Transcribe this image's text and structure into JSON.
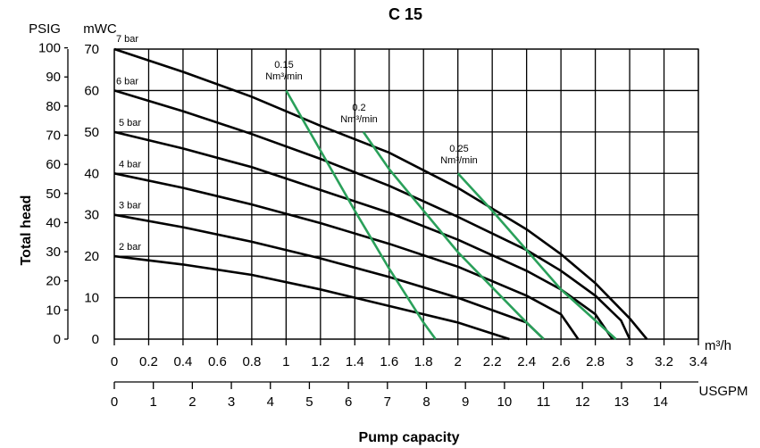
{
  "chart_data": {
    "type": "line",
    "title": "C 15",
    "xlabel": "Pump capacity",
    "ylabel": "Total head",
    "x_unit": "m³/h",
    "x2_unit": "USGPM",
    "y_unit": "mWC",
    "y2_unit": "PSIG",
    "xlim": [
      0,
      3.4
    ],
    "ylim": [
      0,
      70
    ],
    "grid": true,
    "x_ticks": [
      "0",
      "0.2",
      "0.4",
      "0.6",
      "0.8",
      "1",
      "1.2",
      "1.4",
      "1.6",
      "1.8",
      "2",
      "2.2",
      "2.4",
      "2.6",
      "2.8",
      "3",
      "3.2",
      "3.4"
    ],
    "y_ticks": [
      "0",
      "10",
      "20",
      "30",
      "40",
      "50",
      "60",
      "70"
    ],
    "psig_ticks": [
      "0",
      "10",
      "20",
      "30",
      "40",
      "50",
      "60",
      "70",
      "80",
      "90",
      "100"
    ],
    "usgpm_ticks": [
      "0",
      "1",
      "2",
      "3",
      "4",
      "5",
      "6",
      "7",
      "8",
      "9",
      "10",
      "11",
      "12",
      "13",
      "14"
    ],
    "series": [
      {
        "name": "7 bar",
        "kind": "pressure",
        "x": [
          0,
          0.4,
          0.8,
          1.2,
          1.6,
          2.0,
          2.4,
          2.6,
          2.8,
          3.0,
          3.1
        ],
        "y": [
          70,
          64.5,
          58.5,
          51.5,
          45,
          36.5,
          26.5,
          20.5,
          13.5,
          5,
          0
        ]
      },
      {
        "name": "6 bar",
        "kind": "pressure",
        "x": [
          0,
          0.4,
          0.8,
          1.2,
          1.6,
          2.0,
          2.4,
          2.6,
          2.8,
          2.95,
          3.0
        ],
        "y": [
          60,
          55,
          49.5,
          43.5,
          37,
          29.5,
          21.5,
          16.5,
          10.5,
          4.5,
          0
        ]
      },
      {
        "name": "5 bar",
        "kind": "pressure",
        "x": [
          0,
          0.4,
          0.8,
          1.2,
          1.6,
          2.0,
          2.4,
          2.6,
          2.8,
          2.9
        ],
        "y": [
          50,
          46,
          41.5,
          36,
          30.5,
          24,
          16.5,
          12,
          6,
          0
        ]
      },
      {
        "name": "4 bar",
        "kind": "pressure",
        "x": [
          0,
          0.4,
          0.8,
          1.2,
          1.6,
          2.0,
          2.4,
          2.6,
          2.7
        ],
        "y": [
          40,
          36.5,
          32.5,
          28,
          23,
          17.5,
          10.5,
          6,
          0
        ]
      },
      {
        "name": "3 bar",
        "kind": "pressure",
        "x": [
          0,
          0.4,
          0.8,
          1.2,
          1.6,
          2.0,
          2.4,
          2.5
        ],
        "y": [
          30,
          27,
          23.5,
          19.5,
          15,
          10,
          4,
          0
        ]
      },
      {
        "name": "2 bar",
        "kind": "pressure",
        "x": [
          0,
          0.4,
          0.8,
          1.2,
          1.6,
          2.0,
          2.3
        ],
        "y": [
          20,
          18,
          15.5,
          12,
          8,
          4,
          0
        ]
      },
      {
        "name": "0.15 Nm³/min",
        "kind": "air",
        "x": [
          1.0,
          1.4,
          1.6,
          1.8,
          1.87
        ],
        "y": [
          60,
          31,
          17,
          4,
          0
        ]
      },
      {
        "name": "0.2 Nm³/min",
        "kind": "air",
        "x": [
          1.45,
          1.6,
          2.0,
          2.4,
          2.5
        ],
        "y": [
          50,
          41,
          21,
          4,
          0
        ]
      },
      {
        "name": "0.25 Nm³/min",
        "kind": "air",
        "x": [
          2.0,
          2.2,
          2.6,
          2.92
        ],
        "y": [
          40,
          31,
          12,
          0
        ]
      }
    ],
    "annotations": [
      {
        "line1": "7 bar",
        "line2": ""
      },
      {
        "line1": "6 bar",
        "line2": ""
      },
      {
        "line1": "5 bar",
        "line2": ""
      },
      {
        "line1": "4 bar",
        "line2": ""
      },
      {
        "line1": "3 bar",
        "line2": ""
      },
      {
        "line1": "2 bar",
        "line2": ""
      },
      {
        "line1": "0.15",
        "line2": "Nm³/min"
      },
      {
        "line1": "0.2",
        "line2": "Nm³/min"
      },
      {
        "line1": "0.25",
        "line2": "Nm³/min"
      }
    ]
  }
}
